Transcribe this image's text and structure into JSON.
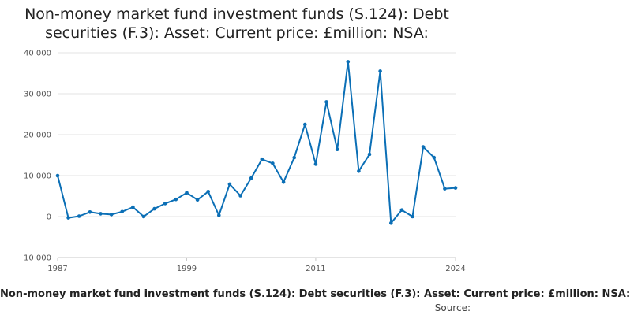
{
  "title": "Non-money market fund investment funds (S.124): Debt securities (F.3): Asset: Current price: £million: NSA:",
  "footer": {
    "series_label": "Non-money market fund investment funds (S.124): Debt securities (F.3): Asset: Current price: £million: NSA:",
    "source_label": "Source:"
  },
  "colors": {
    "line": "#0b6fb6",
    "grid": "#e3e3e3",
    "axis": "#c8c8c8"
  },
  "chart_data": {
    "type": "line",
    "title": "Non-money market fund investment funds (S.124): Debt securities (F.3): Asset: Current price: £million: NSA:",
    "xlabel": "",
    "ylabel": "",
    "xlim": [
      1987,
      2024
    ],
    "ylim": [
      -10000,
      40000
    ],
    "x_ticks": [
      1987,
      1999,
      2011,
      2024
    ],
    "y_ticks": [
      -10000,
      0,
      10000,
      20000,
      30000,
      40000
    ],
    "y_tick_labels": [
      "-10 000",
      "0",
      "10 000",
      "20 000",
      "30 000",
      "40 000"
    ],
    "grid": "horizontal",
    "legend": "none",
    "series": [
      {
        "x": [
          1987,
          1988,
          1989,
          1990,
          1991,
          1992,
          1993,
          1994,
          1995,
          1996,
          1997,
          1998,
          1999,
          2000,
          2001,
          2002,
          2003,
          2004,
          2005,
          2006,
          2007,
          2008,
          2009,
          2010,
          2011,
          2012,
          2013,
          2014,
          2015,
          2016,
          2017,
          2018,
          2019,
          2020,
          2021,
          2022,
          2023,
          2024
        ],
        "values": [
          10000,
          -300,
          100,
          1100,
          700,
          500,
          1200,
          2300,
          0,
          1900,
          3200,
          4200,
          5800,
          4100,
          6100,
          300,
          7900,
          5100,
          9400,
          14000,
          13000,
          8400,
          14400,
          22500,
          12800,
          28000,
          16400,
          37800,
          11100,
          15200,
          35500,
          -1600,
          1600,
          0,
          17000,
          14400,
          6800,
          7000
        ]
      }
    ]
  }
}
